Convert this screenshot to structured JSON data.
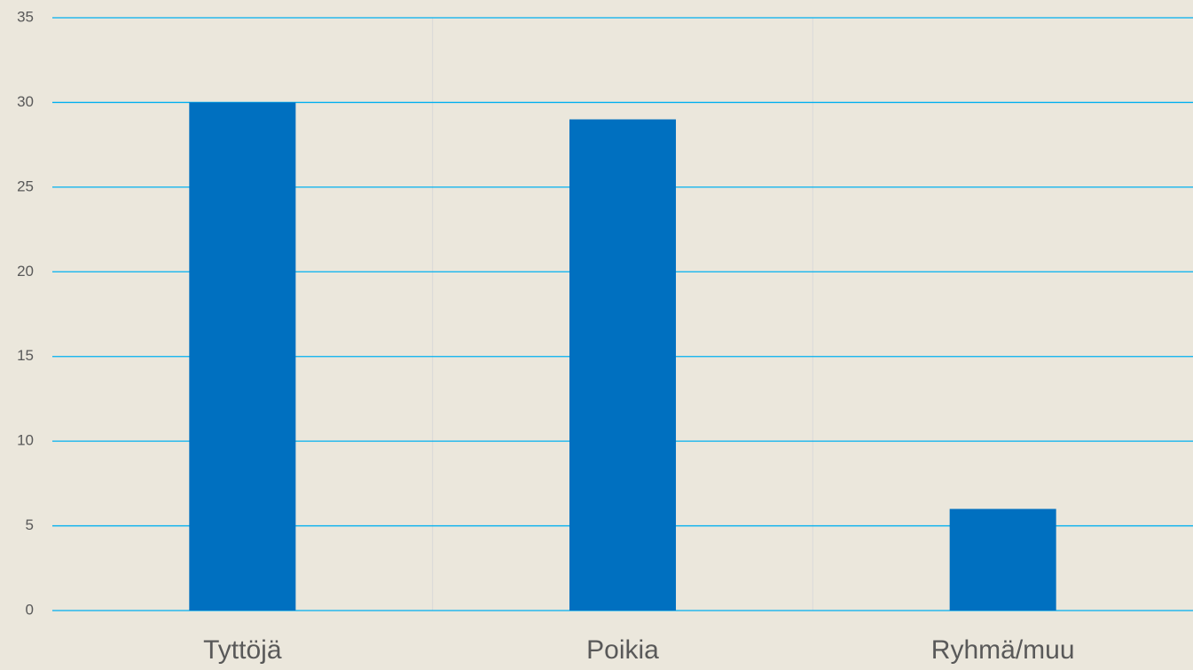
{
  "chart_data": {
    "type": "bar",
    "categories": [
      "Tyttöjä",
      "Poikia",
      "Ryhmä/muu"
    ],
    "values": [
      30,
      29,
      6
    ],
    "color": "#0070c0",
    "ylim": [
      0,
      35
    ],
    "yticks": [
      0,
      5,
      10,
      15,
      20,
      25,
      30,
      35
    ],
    "grid": true,
    "grid_color": "#00b0f0"
  }
}
